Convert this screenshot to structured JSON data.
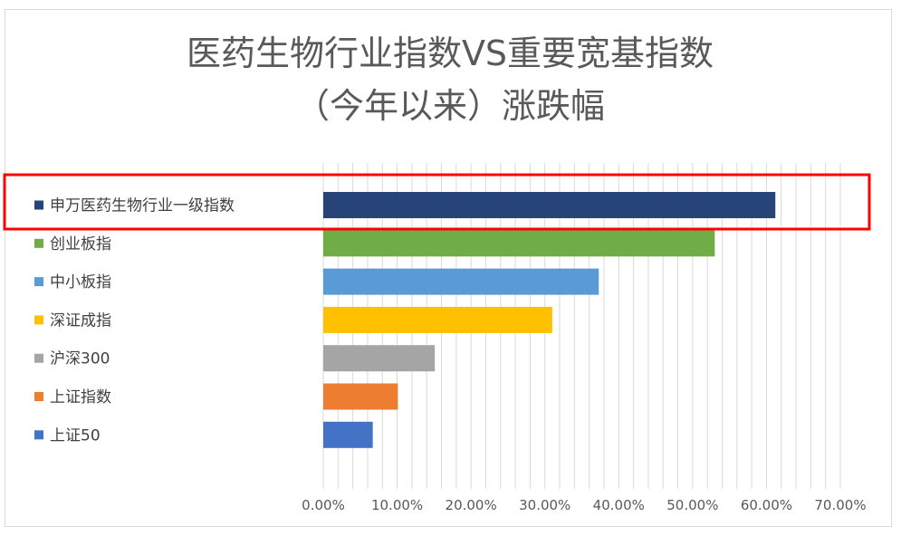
{
  "chart_data": {
    "type": "bar",
    "orientation": "horizontal",
    "title_lines": [
      "医药生物行业指数VS重要宽基指数",
      "（今年以来）涨跌幅"
    ],
    "categories": [
      "申万医药生物行业一级指数",
      "创业板指",
      "中小板指",
      "深证成指",
      "沪深300",
      "上证指数",
      "上证50"
    ],
    "values": [
      61.2,
      53.0,
      37.3,
      31.0,
      15.1,
      10.1,
      6.7
    ],
    "colors": [
      "#264478",
      "#70ad47",
      "#5b9bd5",
      "#ffc000",
      "#a5a5a5",
      "#ed7d31",
      "#4472c4"
    ],
    "xlim": [
      0,
      70
    ],
    "x_ticks": [
      0,
      10,
      20,
      30,
      40,
      50,
      60,
      70
    ],
    "x_tick_labels": [
      "0.00%",
      "10.00%",
      "20.00%",
      "30.00%",
      "40.00%",
      "50.00%",
      "60.00%",
      "70.00%"
    ],
    "minor_gridline_step": 2,
    "highlighted_category": "申万医药生物行业一级指数",
    "highlight_color": "#ff0000",
    "xlabel": "",
    "ylabel": ""
  }
}
